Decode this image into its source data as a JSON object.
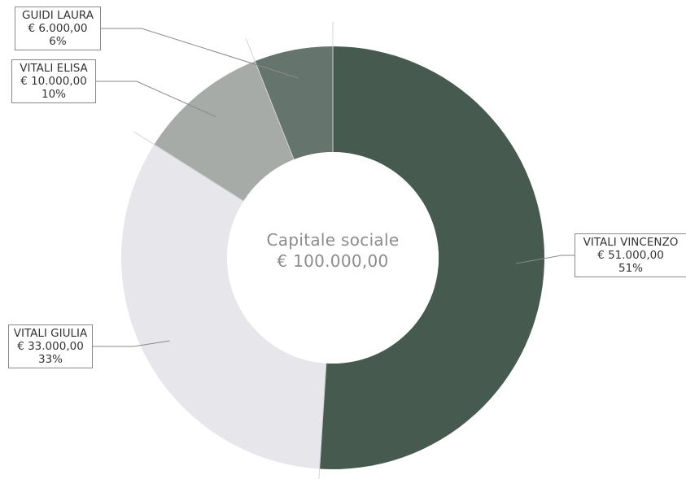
{
  "chart_data": {
    "type": "donut",
    "center_title": "Capitale sociale",
    "center_value": "€ 100.000,00",
    "slices": [
      {
        "name": "VITALI VINCENZO",
        "amount": "€ 51.000,00",
        "percent_label": "51%",
        "value": 51,
        "color": "#475a50"
      },
      {
        "name": "VITALI GIULIA",
        "amount": "€ 33.000,00",
        "percent_label": "33%",
        "value": 33,
        "color": "#e6e6eb"
      },
      {
        "name": "VITALI ELISA",
        "amount": "€ 10.000,00",
        "percent_label": "10%",
        "value": 10,
        "color": "#a7aba8"
      },
      {
        "name": "GUIDI LAURA",
        "amount": "€ 6.000,00",
        "percent_label": "6%",
        "value": 6,
        "color": "#66746e"
      }
    ]
  }
}
